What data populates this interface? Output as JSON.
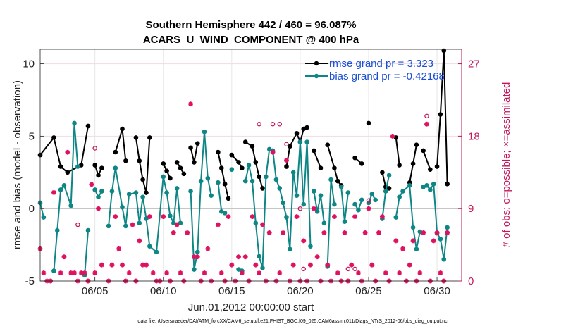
{
  "chart_data": {
    "type": "line",
    "title": "Southern Hemisphere 442 / 460 = 96.087%",
    "subtitle": "ACARS_U_WIND_COMPONENT @ 400 hPa",
    "xlabel": "Jun.01,2012 00:00:00 start",
    "ylabel": "rmse and bias (model - observation)",
    "y2label": "# of obs: o=possible; ×=assimilated",
    "footnote": "data file: /Users/raeder/DAI/ATM_forcXX/CAM6_setup/f.e21.FHIST_BGC.f09_025.CAM6assim.011/Diags_NTrS_2012-06/obs_diag_output.nc",
    "xlim": [
      1.0,
      31.8
    ],
    "ylim": [
      -5,
      11
    ],
    "y2lim": [
      0,
      28.8
    ],
    "xticks": [
      {
        "v": 5,
        "label": "06/05"
      },
      {
        "v": 10,
        "label": "06/10"
      },
      {
        "v": 15,
        "label": "06/15"
      },
      {
        "v": 20,
        "label": "06/20"
      },
      {
        "v": 25,
        "label": "06/25"
      },
      {
        "v": 30,
        "label": "06/30"
      }
    ],
    "yticks": [
      -5,
      0,
      5,
      10
    ],
    "y2ticks": [
      0,
      9,
      18,
      27
    ],
    "series": [
      {
        "name": "rmse",
        "color": "#000000",
        "legend": "rmse grand pr = 3.323",
        "points": [
          [
            1.0,
            3.7
          ],
          [
            2.0,
            4.9
          ],
          [
            2.5,
            2.9
          ],
          [
            3.0,
            2.5
          ],
          [
            4.0,
            3.0
          ],
          [
            4.5,
            5.7
          ],
          [
            5.0,
            3.0
          ],
          [
            5.25,
            2.3
          ],
          [
            5.5,
            2.8
          ],
          [
            6.5,
            3.9
          ],
          [
            7.0,
            5.5
          ],
          [
            7.25,
            3.3
          ],
          [
            8.0,
            4.9
          ],
          [
            8.25,
            3.3
          ],
          [
            8.5,
            2.0
          ],
          [
            8.75,
            1.1
          ],
          [
            9.0,
            4.9
          ],
          [
            10.0,
            3.1
          ],
          [
            10.25,
            2.6
          ],
          [
            10.5,
            2.1
          ],
          [
            11.0,
            3.2
          ],
          [
            11.25,
            2.8
          ],
          [
            11.5,
            2.4
          ],
          [
            12.0,
            4.2
          ],
          [
            12.25,
            3.2
          ],
          [
            12.5,
            4.5
          ],
          [
            14.0,
            3.9
          ],
          [
            14.25,
            2.8
          ],
          [
            14.5,
            1.7
          ],
          [
            14.75,
            0.7
          ],
          [
            15.0,
            3.7
          ],
          [
            15.5,
            3.2
          ],
          [
            15.75,
            2.8
          ],
          [
            16.0,
            4.6
          ],
          [
            16.5,
            4.3
          ],
          [
            16.75,
            3.2
          ],
          [
            17.0,
            2.2
          ],
          [
            17.25,
            1.4
          ],
          [
            19.0,
            2.9
          ],
          [
            19.25,
            4.3
          ],
          [
            19.75,
            5.2
          ],
          [
            20.0,
            4.6
          ],
          [
            20.25,
            5.5
          ],
          [
            20.5,
            5.6
          ],
          [
            21.0,
            4.0
          ],
          [
            21.5,
            2.8
          ],
          [
            22.0,
            4.4
          ],
          [
            22.5,
            2.8
          ],
          [
            22.75,
            1.9
          ],
          [
            23.0,
            1.6
          ],
          [
            24.0,
            3.5
          ],
          [
            24.5,
            3.1
          ],
          [
            25.0,
            5.9
          ],
          [
            26.0,
            2.5
          ],
          [
            26.25,
            1.5
          ],
          [
            26.5,
            1.4
          ],
          [
            27.0,
            4.9
          ],
          [
            27.25,
            3.0
          ],
          [
            28.0,
            1.8
          ],
          [
            28.25,
            3.1
          ],
          [
            28.5,
            4.4
          ],
          [
            29.0,
            4.0
          ],
          [
            29.5,
            2.7
          ],
          [
            30.0,
            2.9
          ],
          [
            30.25,
            6.5
          ],
          [
            30.5,
            10.9
          ],
          [
            30.75,
            1.7
          ]
        ],
        "breaks_before": [
          5.0,
          6.5,
          8.0,
          10.0,
          11.0,
          12.0,
          14.0,
          15.0,
          16.0,
          19.0,
          21.0,
          22.0,
          24.0,
          25.0,
          26.0,
          27.0,
          28.0,
          29.0,
          30.0
        ]
      },
      {
        "name": "bias",
        "color": "#0e8686",
        "legend": "bias grand pr = -0.42168",
        "points": [
          [
            1.0,
            0.4
          ],
          [
            1.25,
            -0.6
          ],
          [
            2.0,
            -4.3
          ],
          [
            2.25,
            -1.5
          ],
          [
            2.5,
            1.3
          ],
          [
            2.75,
            1.6
          ],
          [
            3.25,
            0.2
          ],
          [
            3.5,
            5.9
          ],
          [
            3.75,
            2.9
          ],
          [
            4.25,
            -4.6
          ],
          [
            4.5,
            -1.5
          ],
          [
            5.0,
            1.3
          ],
          [
            5.25,
            0.8
          ],
          [
            5.5,
            1.2
          ],
          [
            6.0,
            -1.2
          ],
          [
            6.25,
            1.2
          ],
          [
            6.5,
            2.8
          ],
          [
            7.0,
            0.1
          ],
          [
            7.25,
            -1.2
          ],
          [
            7.5,
            1.0
          ],
          [
            8.0,
            1.1
          ],
          [
            8.25,
            -1.0
          ],
          [
            8.5,
            0.8
          ],
          [
            8.75,
            -0.7
          ],
          [
            9.0,
            -2.6
          ],
          [
            9.5,
            -3.0
          ],
          [
            10.0,
            2.2
          ],
          [
            10.25,
            1.1
          ],
          [
            10.5,
            -0.5
          ],
          [
            10.75,
            -1.0
          ],
          [
            11.0,
            1.4
          ],
          [
            11.25,
            -1.0
          ],
          [
            12.0,
            1.2
          ],
          [
            12.25,
            -4.2
          ],
          [
            12.5,
            -3.0
          ],
          [
            12.75,
            1.9
          ],
          [
            13.0,
            5.3
          ],
          [
            13.25,
            2.1
          ],
          [
            13.5,
            0.9
          ],
          [
            14.0,
            1.8
          ],
          [
            14.25,
            -0.2
          ],
          [
            14.5,
            -0.3
          ],
          [
            15.0,
            2.7
          ],
          [
            15.5,
            -4.2
          ],
          [
            15.75,
            -4.3
          ],
          [
            16.0,
            1.9
          ],
          [
            16.25,
            3.0
          ],
          [
            16.5,
            1.9
          ],
          [
            16.75,
            -1.0
          ],
          [
            17.0,
            -3.3
          ],
          [
            17.25,
            -4.1
          ],
          [
            17.5,
            2.2
          ],
          [
            17.75,
            4.1
          ],
          [
            18.0,
            4.0
          ],
          [
            18.25,
            2.0
          ],
          [
            18.5,
            1.4
          ],
          [
            18.75,
            0.4
          ],
          [
            19.0,
            -0.6
          ],
          [
            19.25,
            -2.8
          ],
          [
            19.5,
            2.5
          ],
          [
            19.75,
            0.9
          ],
          [
            20.0,
            4.6
          ],
          [
            20.25,
            0.3
          ],
          [
            20.5,
            4.6
          ],
          [
            20.75,
            -2.6
          ],
          [
            21.0,
            1.2
          ],
          [
            21.25,
            -0.2
          ],
          [
            21.5,
            0.9
          ],
          [
            21.75,
            -1.0
          ],
          [
            22.0,
            -4.0
          ],
          [
            22.25,
            2.0
          ],
          [
            22.5,
            0.3
          ],
          [
            23.0,
            1.5
          ],
          [
            23.25,
            -0.9
          ],
          [
            23.5,
            1.1
          ],
          [
            24.0,
            0.3
          ],
          [
            24.25,
            -0.1
          ],
          [
            24.5,
            0.6
          ],
          [
            25.0,
            0.4
          ],
          [
            25.25,
            1.0
          ],
          [
            25.5,
            0.6
          ],
          [
            26.0,
            -0.7
          ],
          [
            26.25,
            1.2
          ],
          [
            26.5,
            2.3
          ],
          [
            27.0,
            -0.6
          ],
          [
            27.25,
            0.8
          ],
          [
            27.5,
            1.2
          ],
          [
            28.0,
            1.6
          ],
          [
            28.25,
            -1.3
          ],
          [
            28.5,
            -2.8
          ],
          [
            28.75,
            -1.6
          ],
          [
            29.0,
            1.5
          ],
          [
            29.25,
            1.6
          ],
          [
            29.5,
            1.3
          ],
          [
            29.75,
            1.7
          ],
          [
            30.0,
            -1.7
          ],
          [
            30.25,
            -2.1
          ],
          [
            30.5,
            -3.5
          ],
          [
            30.75,
            -1.3
          ]
        ],
        "breaks_before": [
          2.0,
          4.25,
          5.0,
          6.0,
          12.0,
          14.0,
          15.0,
          15.5,
          16.0,
          21.0,
          22.0,
          23.0,
          24.0,
          25.0,
          26.0,
          27.0,
          29.0
        ]
      },
      {
        "name": "obs_possible",
        "color": "#c2185b",
        "marker": "circle",
        "points": [
          [
            3.75,
            7.0
          ],
          [
            5.0,
            16.5
          ],
          [
            17.0,
            19.5
          ],
          [
            18.0,
            19.5
          ],
          [
            18.5,
            19.5
          ],
          [
            19.0,
            17.0
          ],
          [
            20.0,
            9.0
          ],
          [
            20.25,
            1.5
          ],
          [
            23.5,
            1.5
          ],
          [
            24.0,
            1.5
          ],
          [
            25.0,
            10.0
          ],
          [
            29.25,
            20.5
          ]
        ]
      },
      {
        "name": "obs_assimilated",
        "color": "#e0115f",
        "marker": "asterisk",
        "points": [
          [
            1.0,
            4.0
          ],
          [
            1.25,
            1.0
          ],
          [
            1.5,
            0
          ],
          [
            1.75,
            0
          ],
          [
            2.0,
            11.0
          ],
          [
            2.5,
            1.0
          ],
          [
            2.75,
            3.0
          ],
          [
            3.0,
            16.0
          ],
          [
            3.25,
            1.0
          ],
          [
            3.5,
            1.0
          ],
          [
            3.75,
            0
          ],
          [
            4.0,
            1.0
          ],
          [
            4.25,
            1.0
          ],
          [
            4.5,
            0
          ],
          [
            4.75,
            12.0
          ],
          [
            5.0,
            1.0
          ],
          [
            5.25,
            9.0
          ],
          [
            5.5,
            2.0
          ],
          [
            6.0,
            0
          ],
          [
            6.25,
            2.0
          ],
          [
            6.5,
            8.0
          ],
          [
            6.75,
            4.0
          ],
          [
            7.0,
            2.0
          ],
          [
            7.25,
            0
          ],
          [
            7.5,
            1.0
          ],
          [
            7.75,
            7.0
          ],
          [
            8.0,
            0
          ],
          [
            8.25,
            5.0
          ],
          [
            8.5,
            2.0
          ],
          [
            8.75,
            2.0
          ],
          [
            9.0,
            8.0
          ],
          [
            9.25,
            1.0
          ],
          [
            9.5,
            0
          ],
          [
            9.75,
            0
          ],
          [
            10.0,
            8.0
          ],
          [
            10.25,
            1.0
          ],
          [
            10.5,
            0
          ],
          [
            10.75,
            6.0
          ],
          [
            11.0,
            7.0
          ],
          [
            11.25,
            1.0
          ],
          [
            11.5,
            0
          ],
          [
            11.75,
            6.0
          ],
          [
            12.0,
            22.0
          ],
          [
            12.25,
            3.0
          ],
          [
            12.5,
            3.0
          ],
          [
            12.75,
            0
          ],
          [
            13.0,
            1.0
          ],
          [
            13.25,
            4.0
          ],
          [
            13.5,
            0
          ],
          [
            14.0,
            7.0
          ],
          [
            14.25,
            1.0
          ],
          [
            14.5,
            0
          ],
          [
            14.75,
            8.0
          ],
          [
            15.0,
            2.0
          ],
          [
            15.25,
            0
          ],
          [
            15.5,
            3.0
          ],
          [
            15.75,
            1.0
          ],
          [
            16.0,
            3.0
          ],
          [
            16.25,
            0
          ],
          [
            16.5,
            8.0
          ],
          [
            16.75,
            2.0
          ],
          [
            17.0,
            1.0
          ],
          [
            17.25,
            7.0
          ],
          [
            17.5,
            0
          ],
          [
            17.75,
            6.0
          ],
          [
            18.0,
            16.0
          ],
          [
            18.25,
            0
          ],
          [
            18.5,
            1.0
          ],
          [
            18.75,
            6.0
          ],
          [
            19.0,
            15.0
          ],
          [
            19.25,
            0
          ],
          [
            19.5,
            2.0
          ],
          [
            19.75,
            8.0
          ],
          [
            20.0,
            0
          ],
          [
            20.25,
            5.0
          ],
          [
            20.5,
            0
          ],
          [
            20.75,
            2.0
          ],
          [
            21.0,
            9.0
          ],
          [
            21.25,
            3.0
          ],
          [
            21.5,
            0
          ],
          [
            21.75,
            6.0
          ],
          [
            22.0,
            2.0
          ],
          [
            22.25,
            0
          ],
          [
            22.5,
            8.0
          ],
          [
            22.75,
            1.0
          ],
          [
            23.0,
            0
          ],
          [
            23.25,
            6.0
          ],
          [
            23.5,
            0
          ],
          [
            23.75,
            2.0
          ],
          [
            24.0,
            8.0
          ],
          [
            24.25,
            1.0
          ],
          [
            24.5,
            0
          ],
          [
            24.75,
            6.0
          ],
          [
            25.0,
            9.0
          ],
          [
            25.25,
            2.0
          ],
          [
            25.5,
            0
          ],
          [
            25.75,
            6.0
          ],
          [
            26.0,
            8.0
          ],
          [
            26.25,
            1.0
          ],
          [
            26.5,
            0
          ],
          [
            26.75,
            18.0
          ],
          [
            27.0,
            5.0
          ],
          [
            27.25,
            1.0
          ],
          [
            27.5,
            4.0
          ],
          [
            27.75,
            0
          ],
          [
            28.0,
            2.0
          ],
          [
            28.25,
            5.0
          ],
          [
            28.5,
            0
          ],
          [
            28.75,
            1.0
          ],
          [
            29.0,
            6.0
          ],
          [
            29.25,
            19.5
          ],
          [
            29.5,
            0
          ],
          [
            29.75,
            5.0
          ],
          [
            30.0,
            6.0
          ],
          [
            30.25,
            1.0
          ],
          [
            30.5,
            0
          ],
          [
            30.75,
            6.0
          ]
        ]
      }
    ]
  }
}
